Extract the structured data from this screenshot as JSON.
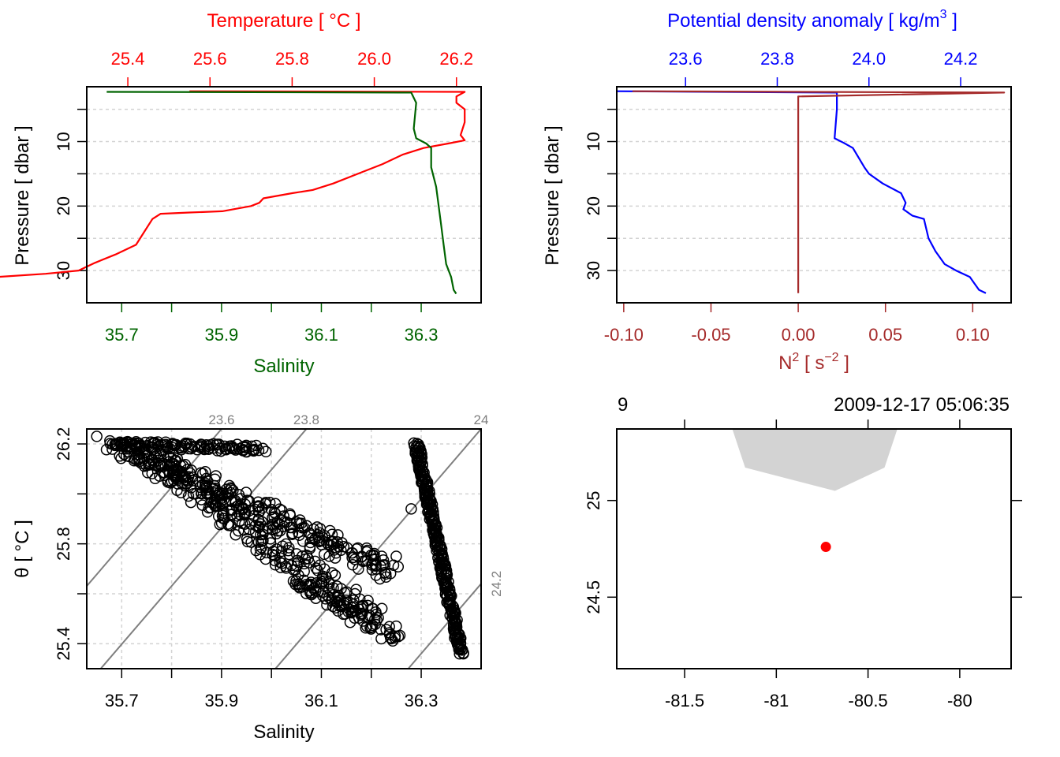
{
  "chart_data": [
    {
      "id": "ts_profile",
      "type": "line",
      "ylabel": "Pressure [ dbar ]",
      "ylim": [
        35,
        1.5
      ],
      "yticks": [
        10,
        20,
        30
      ],
      "ygrid": [
        5,
        10,
        15,
        20,
        25,
        30
      ],
      "top_axis": {
        "label": "Temperature [ °C ]",
        "color": "#ff0000",
        "range": [
          25.3,
          26.26
        ],
        "ticks": [
          25.4,
          25.6,
          25.8,
          26.0,
          26.2
        ],
        "tick_labels": [
          "25.4",
          "25.6",
          "25.8",
          "26.0",
          "26.2"
        ]
      },
      "bottom_axis": {
        "label": "Salinity",
        "color": "#006400",
        "range": [
          35.63,
          36.42
        ],
        "ticks": [
          35.7,
          35.8,
          35.9,
          36.0,
          36.1,
          36.2,
          36.3
        ],
        "tick_labels": [
          "35.7",
          "",
          "35.9",
          "",
          "36.1",
          "",
          "36.3"
        ]
      },
      "series": [
        {
          "name": "Temperature",
          "color": "#ff0000",
          "axis": "top",
          "points": [
            [
              25.55,
              2.2
            ],
            [
              26.22,
              2.3
            ],
            [
              26.2,
              3
            ],
            [
              26.2,
              4
            ],
            [
              26.22,
              5
            ],
            [
              26.22,
              7
            ],
            [
              26.21,
              9
            ],
            [
              26.22,
              9.8
            ],
            [
              26.18,
              10.3
            ],
            [
              26.12,
              11
            ],
            [
              26.07,
              12
            ],
            [
              26.02,
              13.5
            ],
            [
              25.96,
              15
            ],
            [
              25.9,
              16.5
            ],
            [
              25.85,
              17.5
            ],
            [
              25.8,
              18
            ],
            [
              25.73,
              18.8
            ],
            [
              25.72,
              19.5
            ],
            [
              25.7,
              20
            ],
            [
              25.63,
              20.8
            ],
            [
              25.55,
              21
            ],
            [
              25.48,
              21.2
            ],
            [
              25.46,
              22
            ],
            [
              25.44,
              24
            ],
            [
              25.42,
              26
            ],
            [
              25.37,
              27.5
            ],
            [
              25.32,
              28.8
            ],
            [
              25.28,
              30
            ],
            [
              25.2,
              30.5
            ],
            [
              25.08,
              31
            ],
            [
              24.98,
              31.5
            ],
            [
              24.95,
              32.3
            ],
            [
              24.9,
              32.8
            ],
            [
              24.85,
              33.5
            ],
            [
              24.7,
              33.7
            ]
          ]
        },
        {
          "name": "Salinity",
          "color": "#006400",
          "axis": "bottom",
          "points": [
            [
              35.67,
              2.3
            ],
            [
              36.28,
              2.4
            ],
            [
              36.29,
              4
            ],
            [
              36.285,
              8
            ],
            [
              36.29,
              9.5
            ],
            [
              36.31,
              10.3
            ],
            [
              36.32,
              11
            ],
            [
              36.32,
              14
            ],
            [
              36.33,
              17
            ],
            [
              36.335,
              20
            ],
            [
              36.34,
              23
            ],
            [
              36.345,
              26
            ],
            [
              36.35,
              29
            ],
            [
              36.36,
              31
            ],
            [
              36.365,
              33
            ],
            [
              36.37,
              33.6
            ]
          ]
        }
      ]
    },
    {
      "id": "density_profile",
      "type": "line",
      "ylabel": "Pressure [ dbar ]",
      "ylim": [
        35,
        1.5
      ],
      "yticks": [
        10,
        20,
        30
      ],
      "ygrid": [
        5,
        10,
        15,
        20,
        25,
        30
      ],
      "top_axis": {
        "label": "Potential density anomaly [ kg/m³ ]",
        "label_main": "Potential density anomaly [ kg/m",
        "label_sup": "3",
        "label_end": " ]",
        "color": "#0000ff",
        "range": [
          23.45,
          24.31
        ],
        "ticks": [
          23.6,
          23.8,
          24.0,
          24.2
        ],
        "tick_labels": [
          "23.6",
          "23.8",
          "24.0",
          "24.2"
        ]
      },
      "bottom_axis": {
        "label": "N² [ s⁻² ]",
        "label_main": "N",
        "label_sup": "2",
        "label_mid": " [ s",
        "label_sup2": "−2",
        "label_end": " ]",
        "color": "#a52a2a",
        "range": [
          -0.104,
          0.122
        ],
        "ticks": [
          -0.1,
          -0.05,
          0.0,
          0.05,
          0.1
        ],
        "tick_labels": [
          "-0.10",
          "-0.05",
          "0.00",
          "0.05",
          "0.10"
        ]
      },
      "series": [
        {
          "name": "Potential density anomaly",
          "color": "#0000ff",
          "axis": "top",
          "points": [
            [
              23.45,
              2.2
            ],
            [
              23.93,
              2.4
            ],
            [
              23.93,
              5
            ],
            [
              23.925,
              9.5
            ],
            [
              23.945,
              10.2
            ],
            [
              23.965,
              11
            ],
            [
              23.99,
              14
            ],
            [
              24.0,
              15
            ],
            [
              24.03,
              16.5
            ],
            [
              24.07,
              18
            ],
            [
              24.08,
              19.5
            ],
            [
              24.075,
              20.5
            ],
            [
              24.095,
              21.5
            ],
            [
              24.12,
              22
            ],
            [
              24.13,
              25
            ],
            [
              24.145,
              27
            ],
            [
              24.165,
              29
            ],
            [
              24.19,
              30
            ],
            [
              24.22,
              31
            ],
            [
              24.23,
              32
            ],
            [
              24.24,
              33
            ],
            [
              24.255,
              33.5
            ]
          ]
        },
        {
          "name": "N2",
          "color": "#a52a2a",
          "axis": "bottom",
          "points": [
            [
              -0.095,
              2.2
            ],
            [
              0.118,
              2.4
            ],
            [
              0.0,
              3
            ],
            [
              0.0,
              10
            ],
            [
              0.0,
              20
            ],
            [
              0.0,
              31
            ],
            [
              0.0,
              33.5
            ]
          ]
        }
      ]
    },
    {
      "id": "ts_diagram",
      "type": "scatter",
      "xlabel": "Salinity",
      "ylabel": "θ [ °C ]",
      "xlim": [
        35.63,
        36.42
      ],
      "ylim": [
        25.3,
        26.26
      ],
      "xticks": [
        35.7,
        35.8,
        35.9,
        36.0,
        36.1,
        36.2,
        36.3
      ],
      "xtick_labels": [
        "35.7",
        "",
        "35.9",
        "",
        "36.1",
        "",
        "36.3"
      ],
      "yticks": [
        25.4,
        25.6,
        25.8,
        26.0,
        26.2
      ],
      "ytick_labels": [
        "25.4",
        "",
        "25.8",
        "",
        "26.2"
      ],
      "isopycnals": [
        {
          "label": "23.6",
          "value": 23.6
        },
        {
          "label": "23.8",
          "value": 23.8
        },
        {
          "label": "24",
          "value": 24.0
        },
        {
          "label": "24.2",
          "value": 24.2
        }
      ],
      "clusters": [
        {
          "name": "upper-band",
          "from": [
            35.68,
            26.2
          ],
          "to": [
            36.24,
            25.69
          ],
          "spread": 0.03,
          "n": 260
        },
        {
          "name": "lower-band",
          "from": [
            35.75,
            26.17
          ],
          "to": [
            36.2,
            25.5
          ],
          "spread": 0.035,
          "n": 240
        },
        {
          "name": "tail",
          "from": [
            36.05,
            25.65
          ],
          "to": [
            36.25,
            25.42
          ],
          "spread": 0.015,
          "n": 60
        },
        {
          "name": "surface-cluster",
          "from": [
            35.68,
            26.2
          ],
          "to": [
            35.98,
            26.18
          ],
          "spread": 0.012,
          "n": 120
        },
        {
          "name": "deep-column",
          "from": [
            36.29,
            26.2
          ],
          "to": [
            36.38,
            25.36
          ],
          "spread": 0.006,
          "n": 300
        }
      ],
      "outliers": [
        [
          36.28,
          25.94
        ],
        [
          36.25,
          25.75
        ],
        [
          36.25,
          25.47
        ],
        [
          36.24,
          25.42
        ],
        [
          36.22,
          25.42
        ]
      ]
    },
    {
      "id": "station_map",
      "type": "map",
      "top_left_label": "9",
      "top_right_label": "2009-12-17 05:06:35",
      "xlim": [
        -81.87,
        -79.72
      ],
      "ylim": [
        24.13,
        25.37
      ],
      "xticks": [
        -81.5,
        -81.0,
        -80.5,
        -80.0
      ],
      "xtick_labels": [
        "-81.5",
        "-81",
        "-80.5",
        "-80"
      ],
      "yticks": [
        25.0,
        24.5
      ],
      "ytick_labels": [
        "25",
        "24.5"
      ],
      "land_color": "#d3d3d3",
      "land_polygon": [
        [
          -81.24,
          25.37
        ],
        [
          -81.17,
          25.17
        ],
        [
          -80.68,
          25.05
        ],
        [
          -80.41,
          25.17
        ],
        [
          -80.34,
          25.37
        ]
      ],
      "station": {
        "lon": -80.73,
        "lat": 24.76,
        "color": "#ff0000"
      }
    }
  ]
}
